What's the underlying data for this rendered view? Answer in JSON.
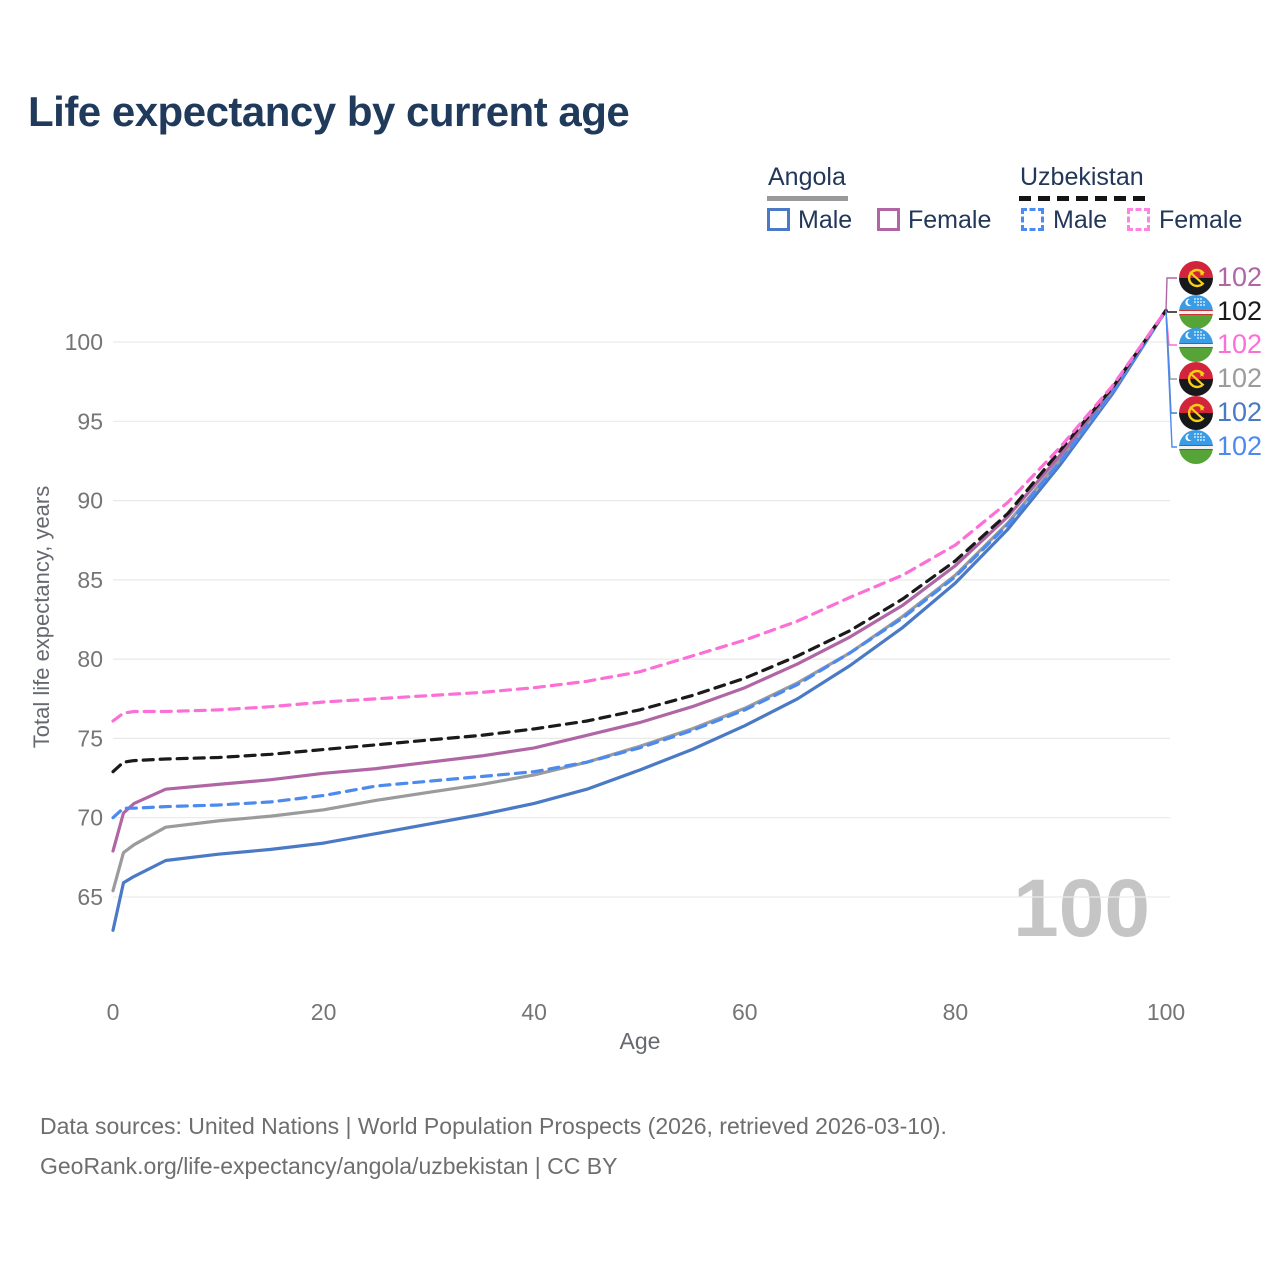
{
  "title": "Life expectancy by current age",
  "legend": {
    "angola": {
      "label": "Angola",
      "male": "Male",
      "female": "Female",
      "line_style": "solid",
      "underline_color": "#9a9a9a"
    },
    "uzbekistan": {
      "label": "Uzbekistan",
      "male": "Male",
      "female": "Female",
      "line_style": "dashed",
      "underline_color": "#141414"
    }
  },
  "annotations": {
    "age_counter": "100"
  },
  "footer": {
    "line1": "Data sources: United Nations | World Population Prospects (2026, retrieved 2026-03-10).",
    "line2": "GeoRank.org/life-expectancy/angola/uzbekistan | CC BY"
  },
  "chart_data": {
    "type": "line",
    "title": "Life expectancy by current age",
    "xlabel": "Age",
    "ylabel": "Total life expectancy, years",
    "xlim": [
      0,
      100
    ],
    "ylim": [
      62,
      103
    ],
    "xticks": [
      0,
      20,
      40,
      60,
      80,
      100
    ],
    "yticks": [
      65,
      70,
      75,
      80,
      85,
      90,
      95,
      100
    ],
    "grid": "horizontal",
    "legend_position": "top-right",
    "x": [
      0,
      1,
      2,
      5,
      10,
      15,
      20,
      25,
      30,
      35,
      40,
      45,
      50,
      55,
      60,
      65,
      70,
      75,
      80,
      85,
      90,
      95,
      100
    ],
    "series": [
      {
        "name": "Angola Male",
        "country": "Angola",
        "sex": "male",
        "color": "#4a79c5",
        "dashed": false,
        "flag": "angola",
        "end_label": "102",
        "callout_row": 4,
        "values": [
          62.9,
          65.9,
          66.3,
          67.3,
          67.7,
          68.0,
          68.4,
          69.0,
          69.6,
          70.2,
          70.9,
          71.8,
          73.0,
          74.3,
          75.8,
          77.5,
          79.6,
          82.0,
          84.8,
          88.2,
          92.3,
          96.8,
          102.0
        ]
      },
      {
        "name": "Angola Both sexes",
        "country": "Angola",
        "sex": "both",
        "color": "#9a9b9d",
        "dashed": false,
        "flag": "angola",
        "end_label": "102",
        "callout_row": 3,
        "values": [
          65.4,
          67.8,
          68.3,
          69.4,
          69.8,
          70.1,
          70.5,
          71.1,
          71.6,
          72.1,
          72.7,
          73.5,
          74.5,
          75.6,
          76.9,
          78.5,
          80.4,
          82.7,
          85.3,
          88.6,
          92.6,
          97.0,
          102.0
        ]
      },
      {
        "name": "Angola Female",
        "country": "Angola",
        "sex": "female",
        "color": "#b065a5",
        "dashed": false,
        "flag": "angola",
        "end_label": "102",
        "callout_row": 0,
        "values": [
          67.9,
          70.3,
          70.9,
          71.8,
          72.1,
          72.4,
          72.8,
          73.1,
          73.5,
          73.9,
          74.4,
          75.2,
          76.0,
          77.0,
          78.2,
          79.7,
          81.4,
          83.4,
          85.9,
          89.0,
          92.9,
          97.1,
          102.0
        ]
      },
      {
        "name": "Uzbekistan Male",
        "country": "Uzbekistan",
        "sex": "male",
        "color": "#4c8af0",
        "dashed": true,
        "flag": "uzbekistan",
        "end_label": "102",
        "callout_row": 5,
        "values": [
          70.0,
          70.6,
          70.6,
          70.7,
          70.8,
          71.0,
          71.4,
          72.0,
          72.3,
          72.6,
          72.9,
          73.5,
          74.4,
          75.5,
          76.8,
          78.4,
          80.4,
          82.6,
          85.2,
          88.5,
          92.5,
          96.9,
          102.0
        ]
      },
      {
        "name": "Uzbekistan Both sexes",
        "country": "Uzbekistan",
        "sex": "both",
        "color": "#1a1a1a",
        "dashed": true,
        "flag": "uzbekistan",
        "end_label": "102",
        "callout_row": 1,
        "values": [
          72.9,
          73.5,
          73.6,
          73.7,
          73.8,
          74.0,
          74.3,
          74.6,
          74.9,
          75.2,
          75.6,
          76.1,
          76.8,
          77.7,
          78.8,
          80.2,
          81.8,
          83.8,
          86.2,
          89.2,
          93.2,
          97.2,
          102.0
        ]
      },
      {
        "name": "Uzbekistan Female",
        "country": "Uzbekistan",
        "sex": "female",
        "color": "#fc6fd6",
        "dashed": true,
        "flag": "uzbekistan",
        "end_label": "102",
        "callout_row": 2,
        "values": [
          76.1,
          76.6,
          76.7,
          76.7,
          76.8,
          77.0,
          77.3,
          77.5,
          77.7,
          77.9,
          78.2,
          78.6,
          79.2,
          80.2,
          81.2,
          82.4,
          83.9,
          85.3,
          87.2,
          89.9,
          93.4,
          97.3,
          102.0
        ]
      }
    ]
  }
}
